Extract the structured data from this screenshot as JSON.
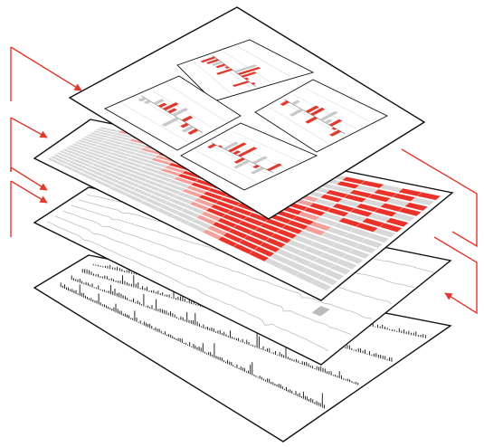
{
  "diagram": {
    "description_text": "",
    "layers": [
      {
        "name": "raw-signal-layer"
      },
      {
        "name": "filtered-signal-layer"
      },
      {
        "name": "heatmap-layer"
      },
      {
        "name": "bar-chart-panels-layer"
      }
    ],
    "heatmap": {
      "rows": 18,
      "cols": 18,
      "colors": {
        "high": "#e8322a",
        "mid": "#f3a09a",
        "low": "#d8d8d8"
      }
    },
    "panels": {
      "count": 4
    },
    "colors": {
      "accent": "#e03a2e",
      "stroke": "#111111",
      "gray": "#bdbdbd"
    }
  }
}
